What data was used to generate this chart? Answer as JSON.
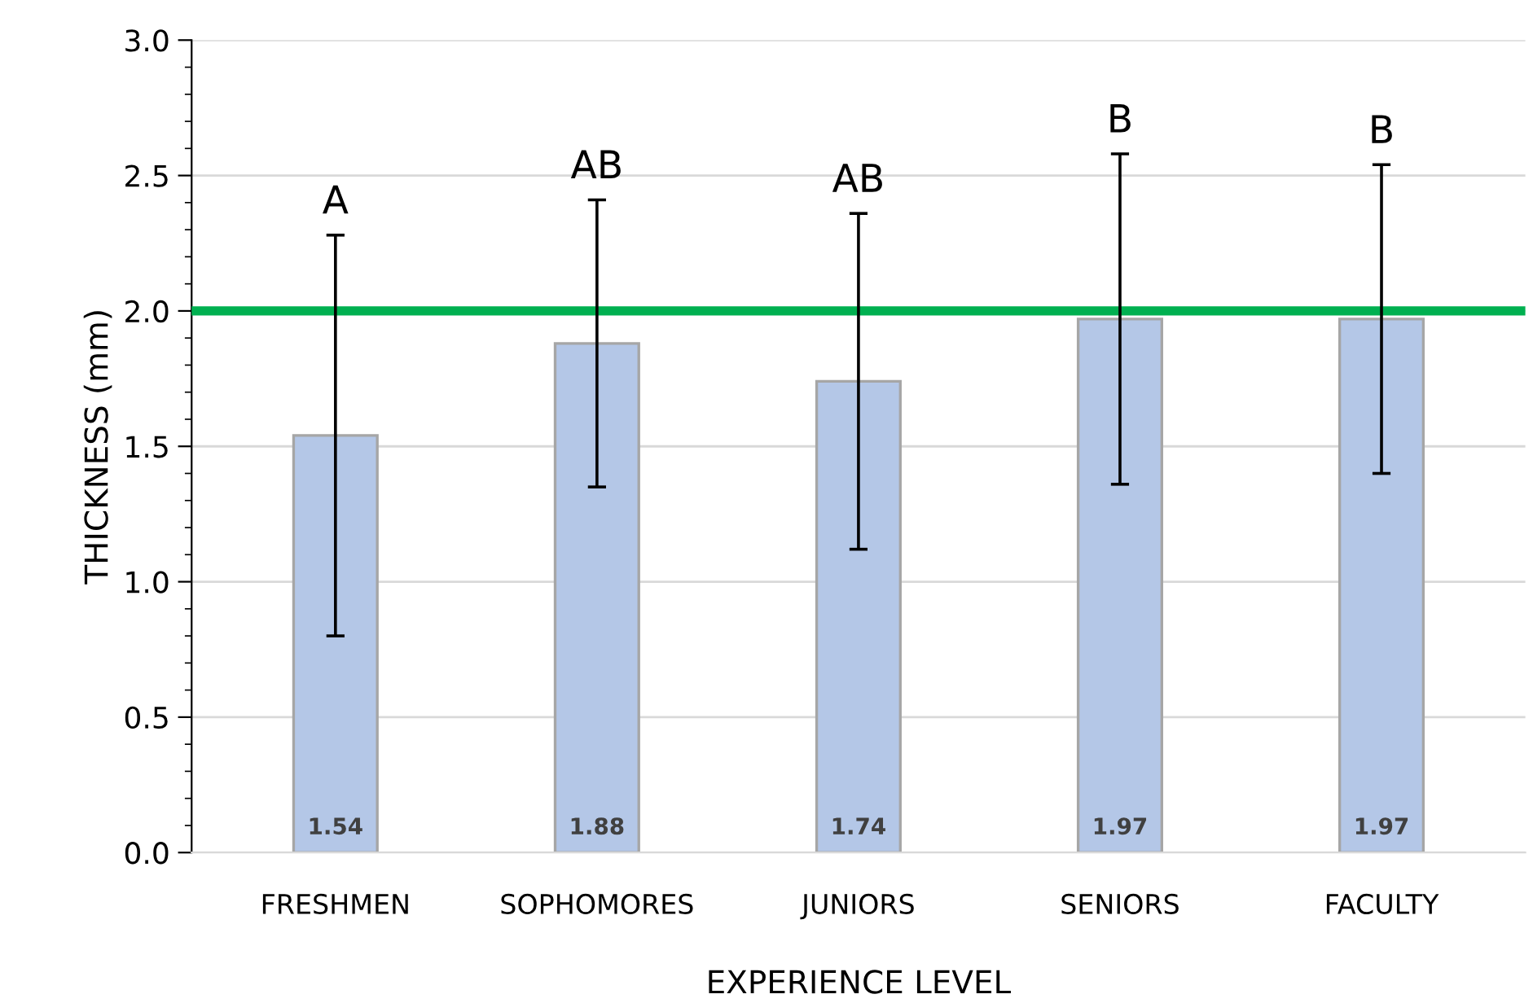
{
  "chart_data": {
    "type": "bar",
    "xlabel": "EXPERIENCE LEVEL",
    "ylabel": "THICKNESS (mm)",
    "categories": [
      "FRESHMEN",
      "SOPHOMORES",
      "JUNIORS",
      "SENIORS",
      "FACULTY"
    ],
    "values": [
      1.54,
      1.88,
      1.74,
      1.97,
      1.97
    ],
    "errors": [
      0.74,
      0.53,
      0.62,
      0.61,
      0.57
    ],
    "color": "#b4c7e7",
    "data_labels": true,
    "ylim": [
      0,
      3.0
    ],
    "yticks": [
      {
        "value": 0,
        "label": "0.0"
      },
      {
        "value": 0.5,
        "label": "0.5"
      },
      {
        "value": 1.0,
        "label": "1.0"
      },
      {
        "value": 1.5,
        "label": "1.5"
      },
      {
        "value": 2.0,
        "label": "2.0"
      },
      {
        "value": 2.5,
        "label": "2.5"
      },
      {
        "value": 3.0,
        "label": "3.0"
      }
    ],
    "ref_lines": [
      {
        "axis": "y",
        "value": 2.0,
        "color": "#00b050"
      }
    ],
    "annotations": [
      {
        "text": "A",
        "x": "FRESHMEN",
        "y": 2.28
      },
      {
        "text": "AB",
        "x": "SOPHOMORES",
        "y": 2.41
      },
      {
        "text": "AB",
        "x": "JUNIORS",
        "y": 2.36
      },
      {
        "text": "B",
        "x": "SENIORS",
        "y": 2.58
      },
      {
        "text": "B",
        "x": "FACULTY",
        "y": 2.54
      }
    ],
    "grid": "y",
    "legend": false
  }
}
